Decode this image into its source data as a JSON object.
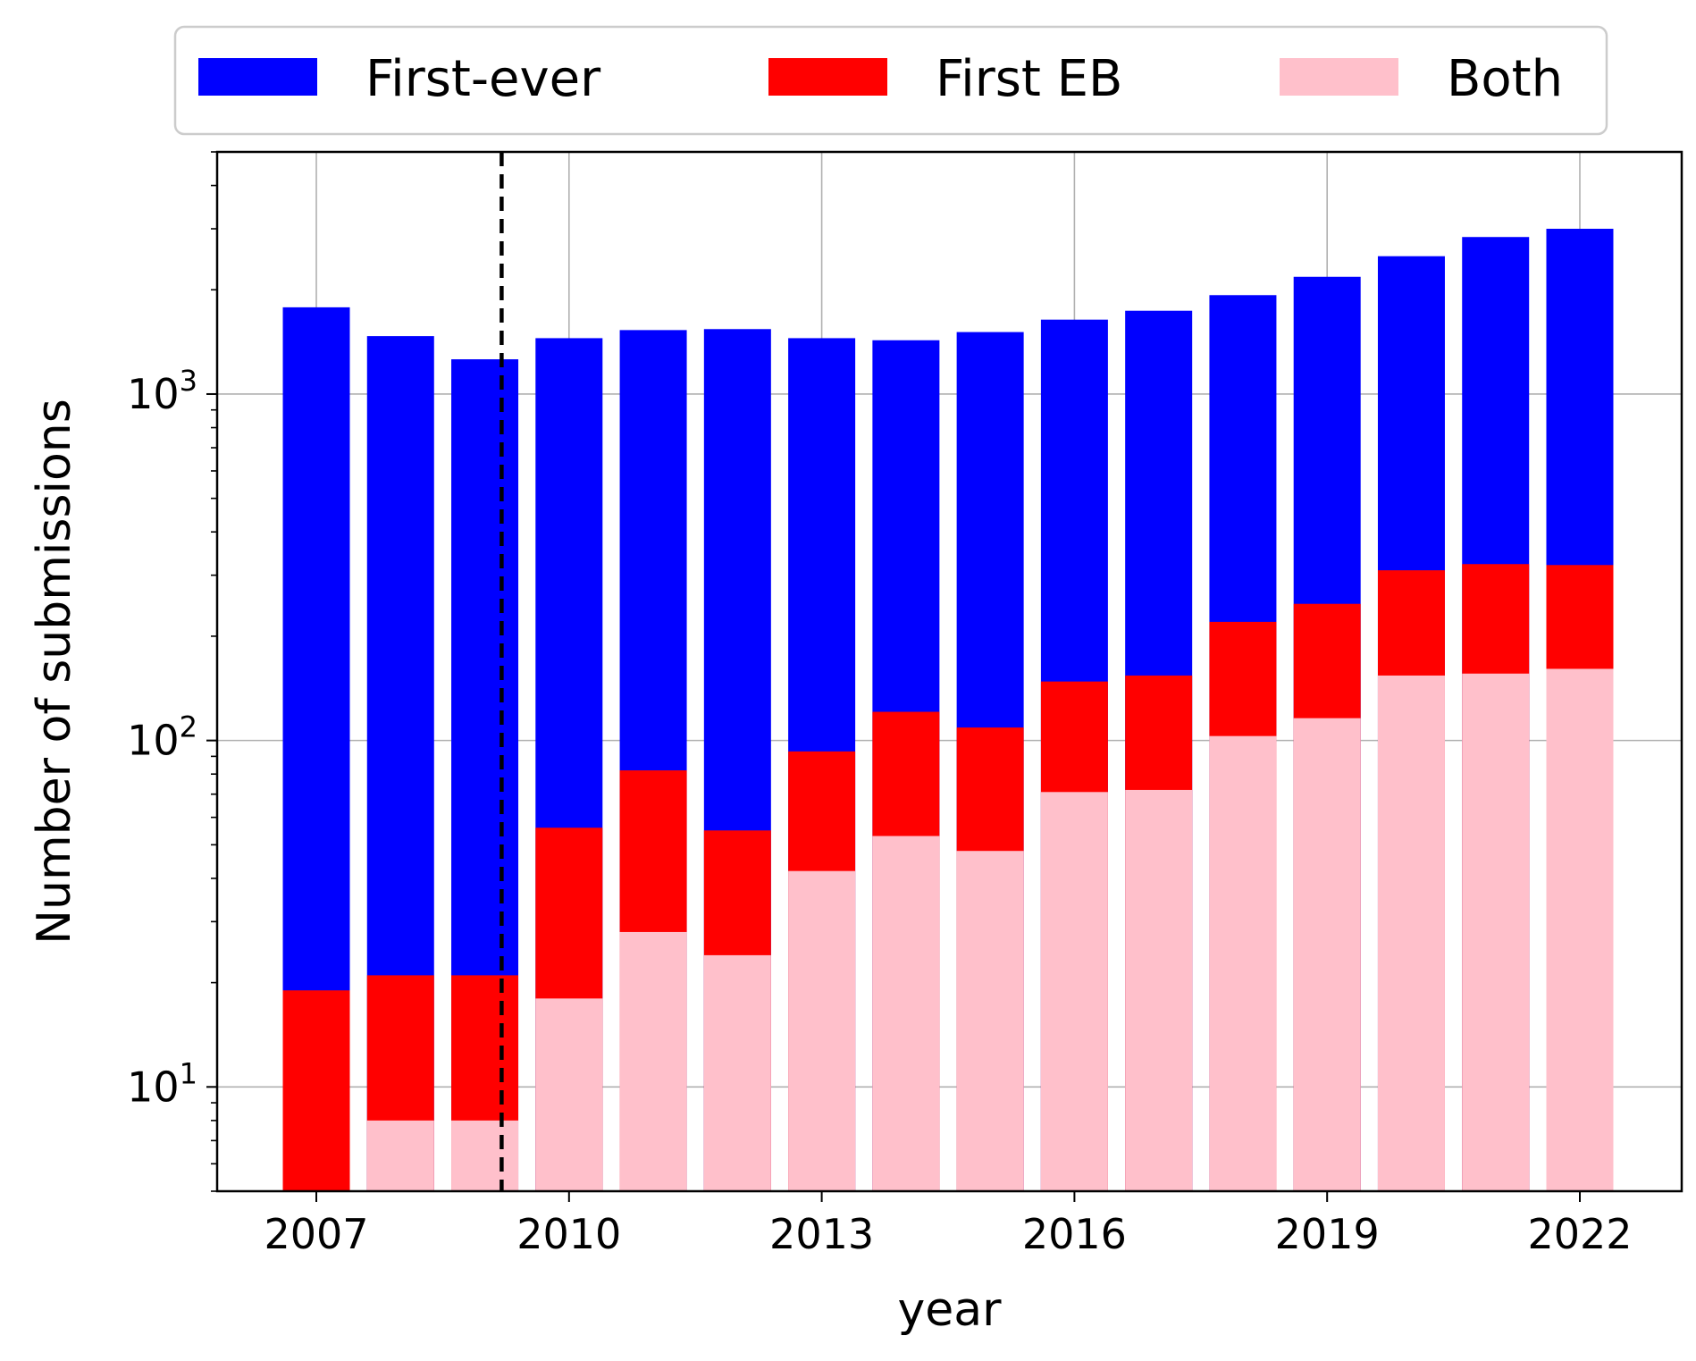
{
  "chart_data": {
    "type": "bar",
    "stacked": true,
    "title": "",
    "xlabel": "year",
    "ylabel": "Number of submissions",
    "x": [
      2007,
      2008,
      2009,
      2010,
      2011,
      2012,
      2013,
      2014,
      2015,
      2016,
      2017,
      2018,
      2019,
      2020,
      2021,
      2022
    ],
    "x_ticks": [
      "2007",
      "2010",
      "2013",
      "2016",
      "2019",
      "2022"
    ],
    "y_scale": "log",
    "ylim": [
      5,
      5000
    ],
    "y_ticks": [
      {
        "value": 10,
        "base": "10",
        "exp": "1"
      },
      {
        "value": 100,
        "base": "10",
        "exp": "2"
      },
      {
        "value": 1000,
        "base": "10",
        "exp": "3"
      }
    ],
    "grid": true,
    "legend_position": "top-center",
    "reference_line": {
      "x": 2009.2,
      "style": "dashed",
      "color": "#000000"
    },
    "series": [
      {
        "name": "First-ever",
        "color": "#0000ff",
        "values": [
          1780,
          1470,
          1260,
          1450,
          1530,
          1540,
          1450,
          1430,
          1510,
          1640,
          1740,
          1930,
          2180,
          2500,
          2840,
          3000
        ]
      },
      {
        "name": "First EB",
        "color": "#ff0000",
        "values": [
          19,
          21,
          21,
          56,
          82,
          55,
          93,
          121,
          109,
          148,
          154,
          220,
          248,
          310,
          323,
          321
        ]
      },
      {
        "name": "Both",
        "color": "#ffc0cb",
        "values": [
          4,
          8,
          8,
          18,
          28,
          24,
          42,
          53,
          48,
          71,
          72,
          103,
          116,
          154,
          156,
          161
        ]
      }
    ]
  }
}
